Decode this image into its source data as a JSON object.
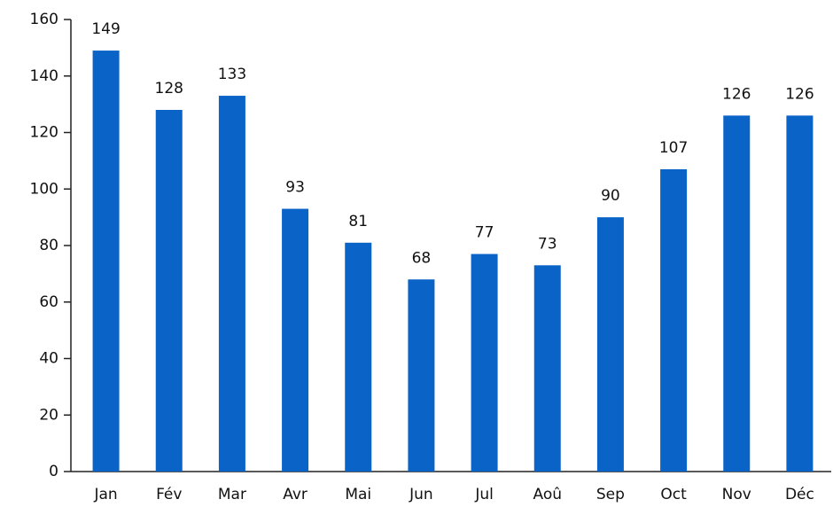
{
  "chart_data": {
    "type": "bar",
    "categories": [
      "Jan",
      "Fév",
      "Mar",
      "Avr",
      "Mai",
      "Jun",
      "Jul",
      "Aoû",
      "Sep",
      "Oct",
      "Nov",
      "Déc"
    ],
    "values": [
      149,
      128,
      133,
      93,
      81,
      68,
      77,
      73,
      90,
      107,
      126,
      126
    ],
    "color": "#0a64c8",
    "ylim": [
      0,
      160
    ],
    "yticks": [
      0,
      20,
      40,
      60,
      80,
      100,
      120,
      140,
      160
    ],
    "data_labels": true
  }
}
